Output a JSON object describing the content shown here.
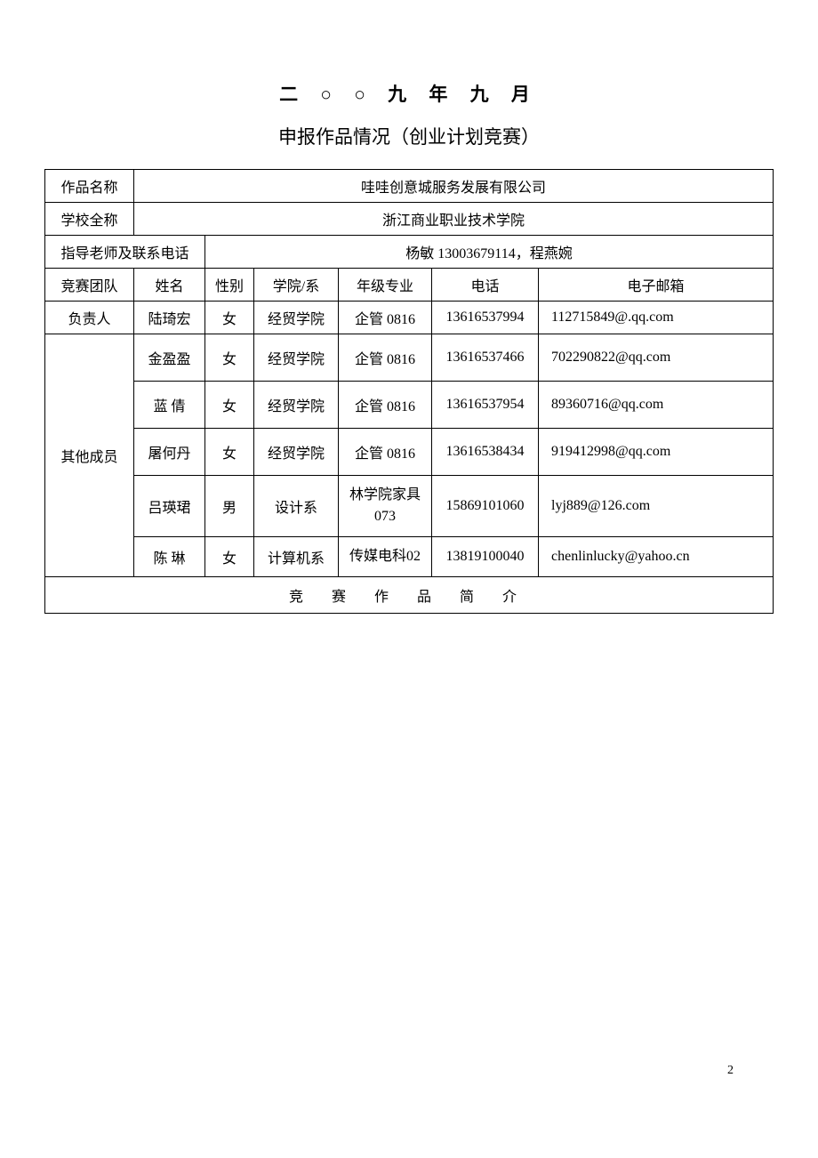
{
  "dateHeader": "二 ○ ○ 九 年 九 月",
  "subtitle": "申报作品情况（创业计划竞赛）",
  "labels": {
    "workName": "作品名称",
    "schoolName": "学校全称",
    "advisor": "指导老师及联系电话",
    "team": "竞赛团队",
    "name": "姓名",
    "gender": "性别",
    "dept": "学院/系",
    "grade": "年级专业",
    "phone": "电话",
    "email": "电子邮箱",
    "leader": "负责人",
    "otherMembers": "其他成员",
    "intro": "竞 赛 作 品 简 介"
  },
  "values": {
    "workName": "哇哇创意城服务发展有限公司",
    "schoolName": "浙江商业职业技术学院",
    "advisor": "杨敏 13003679114，程燕婉"
  },
  "leader": {
    "name": "陆琦宏",
    "gender": "女",
    "dept": "经贸学院",
    "grade": "企管 0816",
    "phone": "13616537994",
    "email": "112715849@.qq.com"
  },
  "members": [
    {
      "name": "金盈盈",
      "gender": "女",
      "dept": "经贸学院",
      "grade": "企管 0816",
      "phone": "13616537466",
      "email": "702290822@qq.com"
    },
    {
      "name": "蓝 倩",
      "gender": "女",
      "dept": "经贸学院",
      "grade": "企管 0816",
      "phone": "13616537954",
      "email": "89360716@qq.com"
    },
    {
      "name": "屠何丹",
      "gender": "女",
      "dept": "经贸学院",
      "grade": "企管 0816",
      "phone": "13616538434",
      "email": "919412998@qq.com"
    },
    {
      "name": "吕瑛珺",
      "gender": "男",
      "dept": "设计系",
      "grade": "林学院家具073",
      "phone": "15869101060",
      "email": "lyj889@126.com"
    },
    {
      "name": "陈 琳",
      "gender": "女",
      "dept": "计算机系",
      "grade": "传媒电科02",
      "phone": "13819100040",
      "email": "chenlinlucky@yahoo.cn"
    }
  ],
  "pageNumber": "2"
}
